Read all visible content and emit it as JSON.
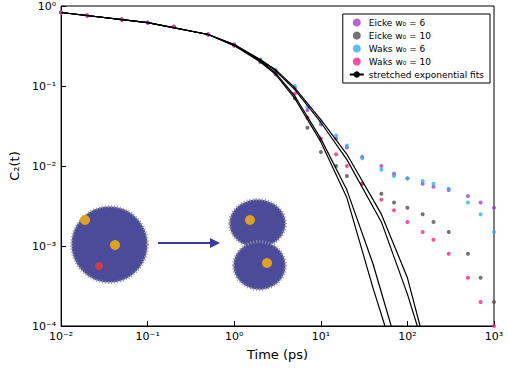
{
  "chart_data": {
    "type": "scatter",
    "x_label": "Time (ps)",
    "y_label": "C₂(t)",
    "log": true,
    "grid": false,
    "legend": "upper right",
    "xlim": [
      0.01,
      1000
    ],
    "ylim": [
      0.0001,
      1
    ],
    "xticks": [
      {
        "value": 0.01,
        "label": "10⁻²"
      },
      {
        "value": 0.1,
        "label": "10⁻¹"
      },
      {
        "value": 1,
        "label": "10⁰"
      },
      {
        "value": 10,
        "label": "10¹"
      },
      {
        "value": 100,
        "label": "10²"
      },
      {
        "value": 1000,
        "label": "10³"
      }
    ],
    "yticks": [
      {
        "value": 0.0001,
        "label": "10⁻⁴"
      },
      {
        "value": 0.001,
        "label": "10⁻³"
      },
      {
        "value": 0.01,
        "label": "10⁻²"
      },
      {
        "value": 0.1,
        "label": "10⁻¹"
      },
      {
        "value": 1,
        "label": "10⁰"
      }
    ],
    "series": [
      {
        "name": "Eicke w₀ = 6",
        "color": "#a040d0",
        "type": "scatter",
        "x": [
          0.01,
          0.02,
          0.05,
          0.1,
          0.2,
          0.5,
          1,
          2,
          3,
          5,
          7,
          10,
          15,
          20,
          30,
          50,
          70,
          100,
          150,
          200,
          300,
          500,
          700,
          1000
        ],
        "values": [
          0.83,
          0.76,
          0.68,
          0.62,
          0.55,
          0.44,
          0.33,
          0.21,
          0.155,
          0.095,
          0.05,
          0.033,
          0.022,
          0.017,
          0.013,
          0.01,
          0.008,
          0.007,
          0.006,
          0.0055,
          0.005,
          0.0042,
          0.0035,
          0.003
        ]
      },
      {
        "name": "Eicke w₀ = 10",
        "color": "#505050",
        "type": "scatter",
        "x": [
          0.01,
          0.02,
          0.05,
          0.1,
          0.2,
          0.5,
          1,
          2,
          3,
          5,
          7,
          10,
          15,
          20,
          30,
          50,
          70,
          100,
          150,
          200,
          300,
          500,
          700,
          1000
        ],
        "values": [
          0.83,
          0.76,
          0.68,
          0.62,
          0.55,
          0.44,
          0.32,
          0.2,
          0.14,
          0.07,
          0.03,
          0.015,
          0.01,
          0.0075,
          0.006,
          0.0045,
          0.0035,
          0.003,
          0.0025,
          0.002,
          0.0015,
          0.0008,
          0.0004,
          0.0002
        ]
      },
      {
        "name": "Waks w₀ = 6",
        "color": "#30b0f0",
        "type": "scatter",
        "x": [
          0.01,
          0.02,
          0.05,
          0.1,
          0.2,
          0.5,
          1,
          2,
          3,
          5,
          7,
          10,
          15,
          20,
          30,
          50,
          70,
          100,
          150,
          200,
          300,
          500,
          700,
          1000
        ],
        "values": [
          0.83,
          0.76,
          0.68,
          0.62,
          0.55,
          0.44,
          0.33,
          0.215,
          0.16,
          0.1,
          0.055,
          0.036,
          0.024,
          0.018,
          0.0125,
          0.009,
          0.0075,
          0.007,
          0.0065,
          0.006,
          0.0052,
          0.0035,
          0.0025,
          0.0015
        ]
      },
      {
        "name": "Waks w₀ = 10",
        "color": "#ff2080",
        "type": "scatter",
        "x": [
          0.01,
          0.02,
          0.05,
          0.1,
          0.2,
          0.5,
          1,
          2,
          3,
          5,
          7,
          10,
          15,
          20,
          30,
          50,
          70,
          100,
          150,
          200,
          300,
          500,
          700,
          1000
        ],
        "values": [
          0.83,
          0.76,
          0.68,
          0.62,
          0.55,
          0.44,
          0.32,
          0.205,
          0.145,
          0.08,
          0.04,
          0.022,
          0.014,
          0.01,
          0.006,
          0.0038,
          0.0028,
          0.002,
          0.0015,
          0.0012,
          0.0008,
          0.0004,
          0.0002,
          0.0001
        ]
      },
      {
        "name": "stretched exponential fits",
        "color": "#000000",
        "type": "line",
        "curves": [
          {
            "x": [
              0.01,
              0.1,
              0.5,
              1,
              2,
              3,
              5,
              10,
              20,
              40,
              55
            ],
            "values": [
              0.83,
              0.62,
              0.44,
              0.32,
              0.2,
              0.14,
              0.07,
              0.02,
              0.004,
              0.0003,
              0.0001
            ]
          },
          {
            "x": [
              0.01,
              0.1,
              0.5,
              1,
              2,
              3,
              5,
              10,
              20,
              40,
              65
            ],
            "values": [
              0.83,
              0.62,
              0.44,
              0.32,
              0.205,
              0.145,
              0.075,
              0.022,
              0.005,
              0.0006,
              0.0001
            ]
          },
          {
            "x": [
              0.01,
              0.1,
              0.5,
              1,
              2,
              3,
              5,
              10,
              20,
              50,
              100,
              130
            ],
            "values": [
              0.83,
              0.62,
              0.44,
              0.33,
              0.21,
              0.155,
              0.09,
              0.035,
              0.012,
              0.002,
              0.00025,
              0.0001
            ]
          },
          {
            "x": [
              0.01,
              0.1,
              0.5,
              1,
              2,
              3,
              5,
              10,
              20,
              50,
              100,
              140
            ],
            "values": [
              0.83,
              0.62,
              0.44,
              0.33,
              0.215,
              0.16,
              0.095,
              0.038,
              0.014,
              0.0025,
              0.0004,
              0.0001
            ]
          }
        ]
      }
    ]
  }
}
